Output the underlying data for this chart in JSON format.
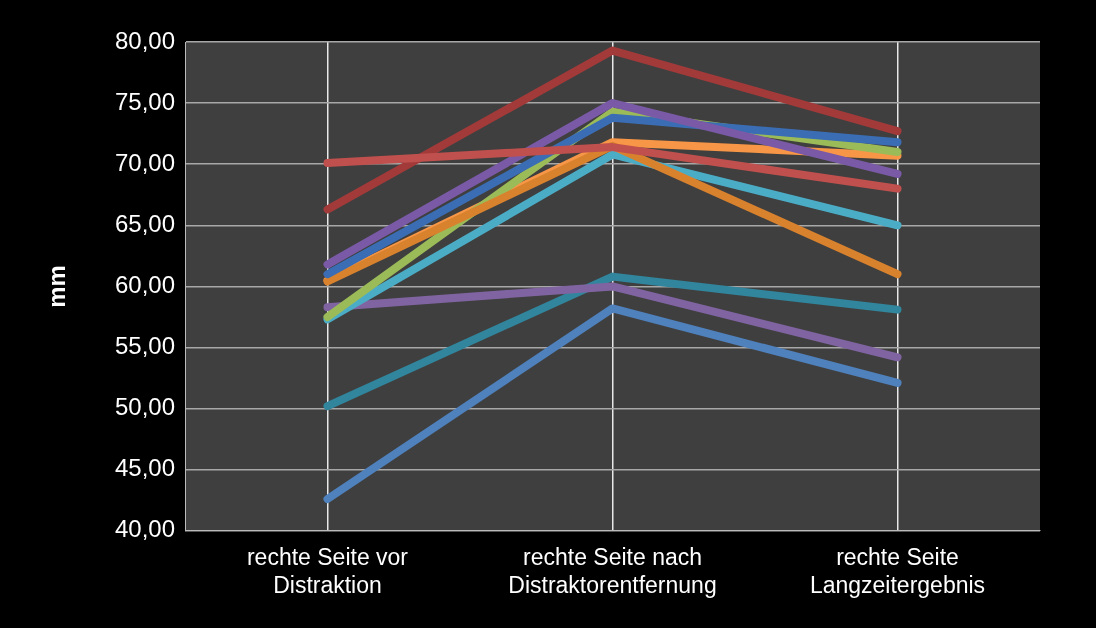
{
  "chart_data": {
    "type": "line",
    "ylabel": "mm",
    "categories": [
      "rechte Seite vor Distraktion",
      "rechte Seite nach Distraktorentfernung",
      "rechte Seite Langzeitergebnis"
    ],
    "ylim": [
      40,
      80
    ],
    "yticks": [
      {
        "value": 40,
        "label": "40,00"
      },
      {
        "value": 45,
        "label": "45,00"
      },
      {
        "value": 50,
        "label": "50,00"
      },
      {
        "value": 55,
        "label": "55,00"
      },
      {
        "value": 60,
        "label": "60,00"
      },
      {
        "value": 65,
        "label": "65,00"
      },
      {
        "value": 70,
        "label": "70,00"
      },
      {
        "value": 75,
        "label": "75,00"
      },
      {
        "value": 80,
        "label": "80,00"
      }
    ],
    "grid": true,
    "legend": false,
    "marker": "none",
    "line_style": "solid",
    "series": [
      {
        "color": "#c0504d",
        "values": [
          70.1,
          71.4,
          68.0
        ]
      },
      {
        "color": "#a33a3a",
        "values": [
          66.3,
          79.3,
          72.7
        ]
      },
      {
        "color": "#7a5aa6",
        "values": [
          61.8,
          75.0,
          69.2
        ]
      },
      {
        "color": "#3a6db3",
        "values": [
          61.0,
          73.8,
          71.8
        ]
      },
      {
        "color": "#d9822e",
        "values": [
          60.4,
          71.5,
          61.0
        ]
      },
      {
        "color": "#9bbb59",
        "values": [
          57.5,
          74.3,
          71.0
        ]
      },
      {
        "color": "#f79646",
        "values": [
          60.5,
          71.8,
          70.7
        ]
      },
      {
        "color": "#4bacc6",
        "values": [
          57.3,
          70.8,
          65.0
        ]
      },
      {
        "color": "#8064a2",
        "values": [
          58.3,
          60.0,
          54.2
        ]
      },
      {
        "color": "#31859c",
        "values": [
          50.2,
          60.8,
          58.1
        ]
      },
      {
        "color": "#4f81bd",
        "values": [
          42.6,
          58.2,
          52.1
        ]
      }
    ]
  }
}
